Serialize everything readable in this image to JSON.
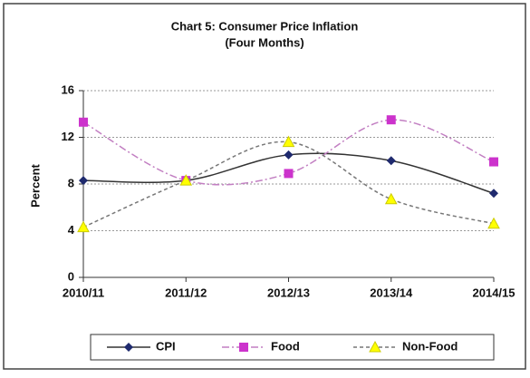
{
  "chart_data": {
    "type": "line",
    "title": "Chart 5: Consumer Price Inflation",
    "subtitle": "(Four Months)",
    "y_label": "Percent",
    "categories": [
      "2010/11",
      "2011/12",
      "2012/13",
      "2013/14",
      "2014/15"
    ],
    "series": [
      {
        "name": "CPI",
        "color": "#1f2a6e",
        "line_color": "#333333",
        "dash": "none",
        "marker": "diamond",
        "values": [
          8.3,
          8.3,
          10.5,
          10.0,
          7.2
        ]
      },
      {
        "name": "Food",
        "color": "#cc33cc",
        "line_color": "#c27fc2",
        "dash": "8 3 2 3",
        "marker": "square",
        "values": [
          13.3,
          8.3,
          8.9,
          13.5,
          9.9
        ]
      },
      {
        "name": "Non-Food",
        "color": "#ffff00",
        "line_color": "#777777",
        "dash": "4 3",
        "marker": "triangle",
        "values": [
          4.3,
          8.3,
          11.6,
          6.7,
          4.6
        ]
      }
    ],
    "ylim": [
      0,
      16
    ],
    "yticks": [
      0,
      4,
      8,
      12,
      16
    ],
    "grid": true,
    "smooth": true,
    "legend": "bottom"
  }
}
